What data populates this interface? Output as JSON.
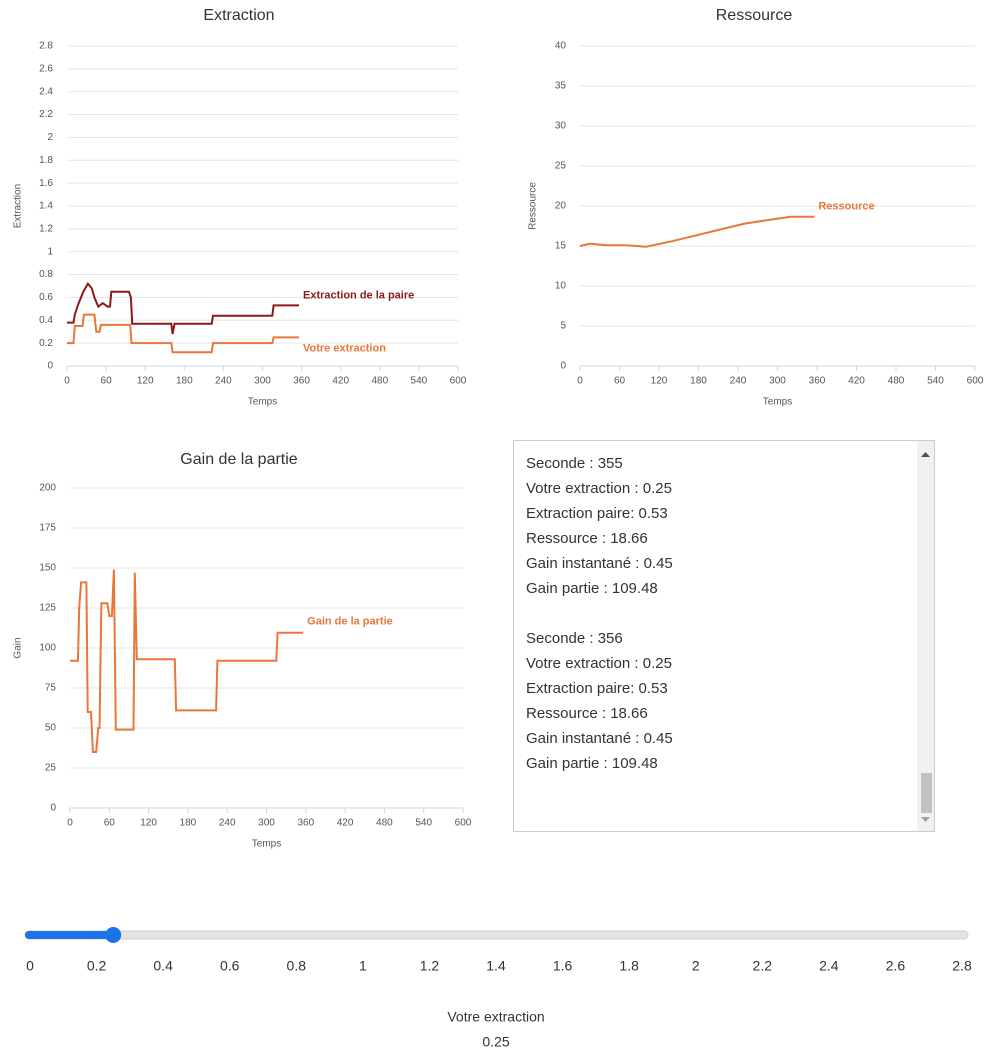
{
  "chart_data": [
    {
      "type": "line",
      "title": "Extraction",
      "x_label": "Temps",
      "y_label": "Extraction",
      "xlim": [
        0,
        600
      ],
      "xticks": [
        0,
        60,
        120,
        180,
        240,
        300,
        360,
        420,
        480,
        540,
        600
      ],
      "ylim": [
        0,
        2.8
      ],
      "yticks": [
        0,
        0.2,
        0.4,
        0.6,
        0.8,
        1,
        1.2,
        1.4,
        1.6,
        1.8,
        2,
        2.2,
        2.4,
        2.6,
        2.8
      ],
      "grid": true,
      "series": [
        {
          "name": "Extraction de la paire",
          "color": "#8b1a1a",
          "x": [
            0,
            10,
            12,
            18,
            25,
            32,
            38,
            42,
            48,
            55,
            62,
            66,
            68,
            95,
            98,
            100,
            160,
            162,
            165,
            222,
            224,
            315,
            317,
            356
          ],
          "values": [
            0.38,
            0.38,
            0.45,
            0.55,
            0.65,
            0.72,
            0.68,
            0.6,
            0.52,
            0.55,
            0.52,
            0.52,
            0.65,
            0.65,
            0.6,
            0.37,
            0.37,
            0.28,
            0.37,
            0.37,
            0.44,
            0.44,
            0.53,
            0.53
          ]
        },
        {
          "name": "Votre extraction",
          "color": "#e8773a",
          "x": [
            0,
            10,
            12,
            24,
            26,
            42,
            45,
            50,
            52,
            97,
            99,
            160,
            162,
            222,
            224,
            315,
            317,
            356
          ],
          "values": [
            0.2,
            0.2,
            0.35,
            0.35,
            0.45,
            0.45,
            0.3,
            0.3,
            0.36,
            0.36,
            0.2,
            0.2,
            0.12,
            0.12,
            0.2,
            0.2,
            0.25,
            0.25
          ]
        }
      ]
    },
    {
      "type": "line",
      "title": "Ressource",
      "x_label": "Temps",
      "y_label": "Ressource",
      "xlim": [
        0,
        600
      ],
      "xticks": [
        0,
        60,
        120,
        180,
        240,
        300,
        360,
        420,
        480,
        540,
        600
      ],
      "ylim": [
        0,
        40
      ],
      "yticks": [
        0,
        5,
        10,
        15,
        20,
        25,
        30,
        35,
        40
      ],
      "grid": true,
      "series": [
        {
          "name": "Ressource",
          "color": "#e8773a",
          "x": [
            0,
            15,
            40,
            70,
            100,
            140,
            180,
            220,
            250,
            290,
            320,
            356
          ],
          "values": [
            15,
            15.3,
            15.1,
            15.1,
            14.9,
            15.6,
            16.4,
            17.2,
            17.8,
            18.3,
            18.66,
            18.66
          ]
        }
      ]
    },
    {
      "type": "line",
      "title": "Gain de la partie",
      "x_label": "Temps",
      "y_label": "Gain",
      "xlim": [
        0,
        600
      ],
      "xticks": [
        0,
        60,
        120,
        180,
        240,
        300,
        360,
        420,
        480,
        540,
        600
      ],
      "ylim": [
        0,
        200
      ],
      "yticks": [
        0,
        25,
        50,
        75,
        100,
        125,
        150,
        175,
        200
      ],
      "grid": true,
      "series": [
        {
          "name": "Gain de la partie",
          "color": "#e8773a",
          "x": [
            0,
            12,
            14,
            17,
            25,
            27,
            32,
            35,
            40,
            43,
            45,
            48,
            57,
            60,
            64,
            67,
            70,
            97,
            99,
            102,
            160,
            162,
            223,
            225,
            315,
            317,
            356
          ],
          "values": [
            92,
            92,
            125,
            141,
            141,
            60,
            60,
            35,
            35,
            50,
            50,
            128,
            128,
            120,
            120,
            149,
            49,
            49,
            147,
            93,
            93,
            61,
            61,
            92,
            92,
            109.48,
            109.48
          ]
        }
      ]
    }
  ],
  "log": [
    [
      "Seconde : 355",
      "Votre extraction : 0.25",
      "Extraction paire: 0.53",
      "Ressource : 18.66",
      "Gain instantané : 0.45",
      "Gain partie : 109.48"
    ],
    [
      "Seconde : 356",
      "Votre extraction : 0.25",
      "Extraction paire: 0.53",
      "Ressource : 18.66",
      "Gain instantané : 0.45",
      "Gain partie : 109.48"
    ]
  ],
  "slider": {
    "label": "Votre extraction",
    "value": 0.25,
    "min": 0,
    "max": 2.8,
    "ticks": [
      0,
      0.2,
      0.4,
      0.6,
      0.8,
      1,
      1.2,
      1.4,
      1.6,
      1.8,
      2,
      2.2,
      2.4,
      2.6,
      2.8
    ]
  }
}
